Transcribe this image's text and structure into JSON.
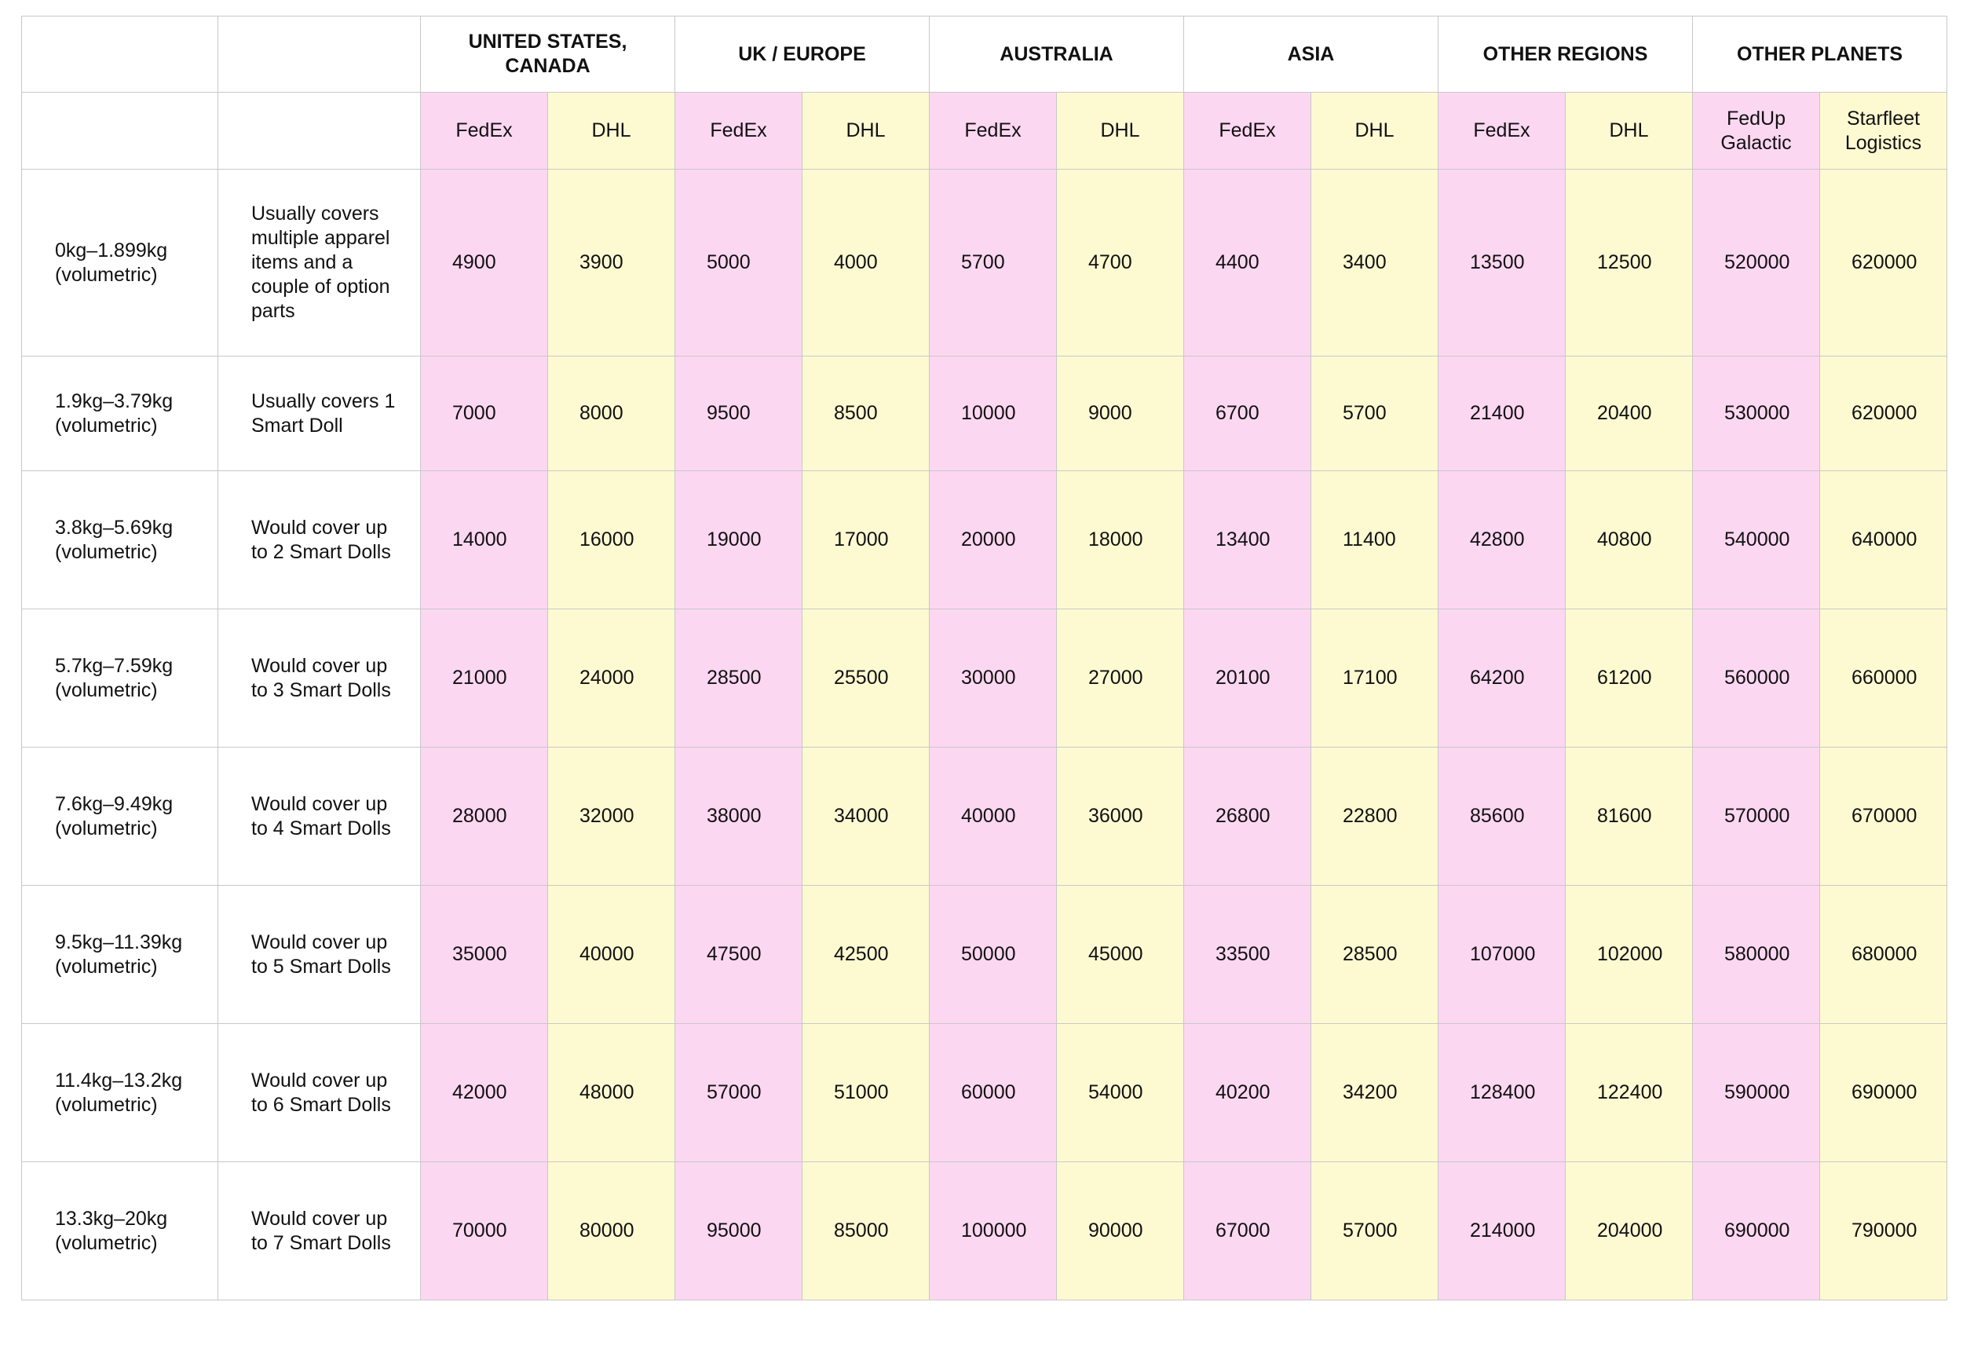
{
  "regions": [
    "UNITED STATES,\nCANADA",
    "UK / EUROPE",
    "AUSTRALIA",
    "ASIA",
    "OTHER REGIONS",
    "OTHER PLANETS"
  ],
  "carriers": [
    "FedEx",
    "DHL",
    "FedEx",
    "DHL",
    "FedEx",
    "DHL",
    "FedEx",
    "DHL",
    "FedEx",
    "DHL",
    "FedUp Galactic",
    "Starfleet Logistics"
  ],
  "rows": [
    {
      "weight": "0kg–1.899kg (volumetric)",
      "desc": "Usually covers multiple apparel items and a couple of option parts",
      "values": [
        "4900",
        "3900",
        "5000",
        "4000",
        "5700",
        "4700",
        "4400",
        "3400",
        "13500",
        "12500",
        "520000",
        "620000"
      ]
    },
    {
      "weight": "1.9kg–3.79kg (volumetric)",
      "desc": "Usually covers 1 Smart Doll",
      "values": [
        "7000",
        "8000",
        "9500",
        "8500",
        "10000",
        "9000",
        "6700",
        "5700",
        "21400",
        "20400",
        "530000",
        "620000"
      ]
    },
    {
      "weight": "3.8kg–5.69kg (volumetric)",
      "desc": "Would cover up to 2 Smart Dolls",
      "values": [
        "14000",
        "16000",
        "19000",
        "17000",
        "20000",
        "18000",
        "13400",
        "11400",
        "42800",
        "40800",
        "540000",
        "640000"
      ]
    },
    {
      "weight": "5.7kg–7.59kg (volumetric)",
      "desc": "Would cover up to 3 Smart Dolls",
      "values": [
        "21000",
        "24000",
        "28500",
        "25500",
        "30000",
        "27000",
        "20100",
        "17100",
        "64200",
        "61200",
        "560000",
        "660000"
      ]
    },
    {
      "weight": "7.6kg–9.49kg (volumetric)",
      "desc": "Would cover up to 4 Smart Dolls",
      "values": [
        "28000",
        "32000",
        "38000",
        "34000",
        "40000",
        "36000",
        "26800",
        "22800",
        "85600",
        "81600",
        "570000",
        "670000"
      ]
    },
    {
      "weight": "9.5kg–11.39kg (volumetric)",
      "desc": "Would cover up to 5 Smart Dolls",
      "values": [
        "35000",
        "40000",
        "47500",
        "42500",
        "50000",
        "45000",
        "33500",
        "28500",
        "107000",
        "102000",
        "580000",
        "680000"
      ]
    },
    {
      "weight": "11.4kg–13.2kg (volumetric)",
      "desc": "Would cover up to 6 Smart Dolls",
      "values": [
        "42000",
        "48000",
        "57000",
        "51000",
        "60000",
        "54000",
        "40200",
        "34200",
        "128400",
        "122400",
        "590000",
        "690000"
      ]
    },
    {
      "weight": "13.3kg–20kg (volumetric)",
      "desc": "Would cover up to 7 Smart Dolls",
      "values": [
        "70000",
        "80000",
        "95000",
        "85000",
        "100000",
        "90000",
        "67000",
        "57000",
        "214000",
        "204000",
        "690000",
        "790000"
      ]
    }
  ]
}
